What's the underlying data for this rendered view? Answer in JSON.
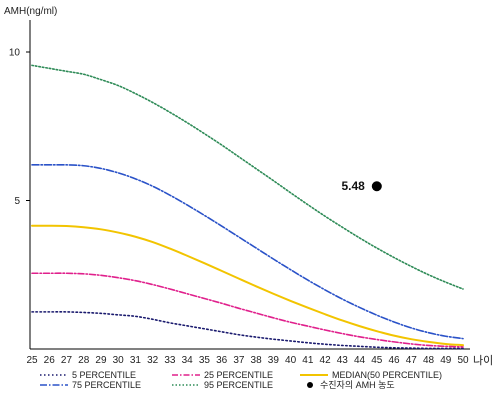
{
  "chart_data": {
    "type": "line",
    "ylabel": "AMH(ng/ml)",
    "xlabel": "나이",
    "xlim": [
      25,
      50
    ],
    "ylim": [
      0,
      11
    ],
    "yticks": [
      5,
      10
    ],
    "x": [
      25,
      26,
      27,
      28,
      29,
      30,
      31,
      32,
      33,
      34,
      35,
      36,
      37,
      38,
      39,
      40,
      41,
      42,
      43,
      44,
      45,
      46,
      47,
      48,
      49,
      50
    ],
    "series": [
      {
        "name": "5 PERCENTILE",
        "color": "#1a1a6e",
        "dash": "1.5,2.5",
        "values": [
          1.25,
          1.25,
          1.25,
          1.23,
          1.2,
          1.15,
          1.1,
          1.0,
          0.88,
          0.78,
          0.68,
          0.58,
          0.48,
          0.4,
          0.33,
          0.27,
          0.21,
          0.16,
          0.12,
          0.09,
          0.06,
          0.04,
          0.03,
          0.02,
          0.02,
          0.02
        ]
      },
      {
        "name": "25 PERCENTILE",
        "color": "#e0208c",
        "dash": "6,2,1.5,2",
        "values": [
          2.55,
          2.55,
          2.55,
          2.53,
          2.48,
          2.4,
          2.3,
          2.17,
          2.02,
          1.86,
          1.7,
          1.54,
          1.37,
          1.21,
          1.05,
          0.9,
          0.77,
          0.64,
          0.52,
          0.41,
          0.32,
          0.24,
          0.17,
          0.12,
          0.09,
          0.07
        ]
      },
      {
        "name": "MEDIAN(50 PERCENTILE)",
        "color": "#f2c400",
        "dash": "",
        "values": [
          4.15,
          4.15,
          4.14,
          4.1,
          4.03,
          3.92,
          3.78,
          3.6,
          3.38,
          3.14,
          2.89,
          2.63,
          2.37,
          2.11,
          1.86,
          1.62,
          1.39,
          1.17,
          0.96,
          0.77,
          0.6,
          0.45,
          0.33,
          0.24,
          0.17,
          0.13
        ]
      },
      {
        "name": "75 PERCENTILE",
        "color": "#2a52c8",
        "dash": "7,2,1.5,2",
        "values": [
          6.2,
          6.2,
          6.2,
          6.17,
          6.08,
          5.93,
          5.73,
          5.48,
          5.18,
          4.85,
          4.5,
          4.14,
          3.77,
          3.4,
          3.03,
          2.67,
          2.32,
          1.99,
          1.68,
          1.4,
          1.14,
          0.91,
          0.71,
          0.55,
          0.43,
          0.35
        ]
      },
      {
        "name": "95 PERCENTILE",
        "color": "#2e8b57",
        "dash": "1.5,2",
        "values": [
          9.55,
          9.45,
          9.35,
          9.25,
          9.07,
          8.87,
          8.6,
          8.3,
          7.97,
          7.62,
          7.25,
          6.87,
          6.47,
          6.07,
          5.67,
          5.26,
          4.86,
          4.47,
          4.1,
          3.74,
          3.4,
          3.08,
          2.78,
          2.5,
          2.25,
          2.02
        ]
      }
    ],
    "patient_point": {
      "name": "수진자의 AMH 농도",
      "x": 45,
      "y": 5.48,
      "label": "5.48",
      "color": "#000000"
    },
    "legend_position": "bottom",
    "grid": false
  }
}
